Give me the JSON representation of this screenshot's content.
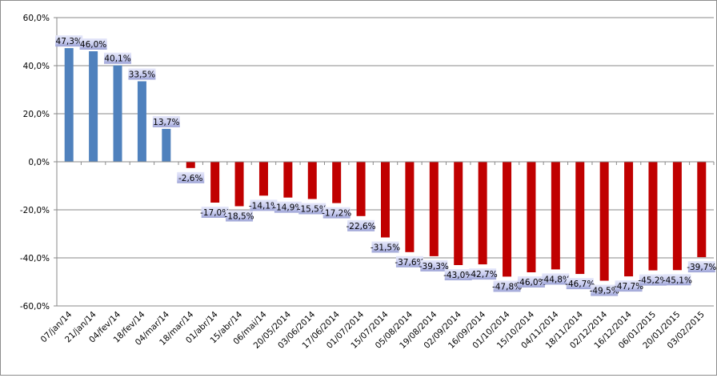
{
  "chart_data": {
    "type": "bar",
    "title": "",
    "xlabel": "",
    "ylabel": "",
    "ylim": [
      -60,
      60
    ],
    "yticks": [
      60,
      40,
      20,
      0,
      -20,
      -40,
      -60
    ],
    "ytick_labels": [
      "60,0%",
      "40,0%",
      "20,0%",
      "0,0%",
      "-20,0%",
      "-40,0%",
      "-60,0%"
    ],
    "grid": true,
    "legend": "none",
    "colors": {
      "positive": "#4f81bd",
      "negative": "#c00000",
      "label_box": "#c5c9ee"
    },
    "categories": [
      "07/jan/14",
      "21/jan/14",
      "04/fev/14",
      "18/fev/14",
      "04/mar/14",
      "18/mar/14",
      "01/abr/14",
      "15/abr/14",
      "06/mai/14",
      "20/05/2014",
      "03/06/2014",
      "17/06/2014",
      "01/07/2014",
      "15/07/2014",
      "05/08/2014",
      "19/08/2014",
      "02/09/2014",
      "16/09/2014",
      "01/10/2014",
      "15/10/2014",
      "04/11/2014",
      "18/11/2014",
      "02/12/2014",
      "16/12/2014",
      "06/01/2015",
      "20/01/2015",
      "03/02/2015"
    ],
    "values": [
      47.3,
      46.0,
      40.1,
      33.5,
      13.7,
      -2.6,
      -17.0,
      -18.5,
      -14.1,
      -14.9,
      -15.5,
      -17.2,
      -22.6,
      -31.5,
      -37.6,
      -39.3,
      -43.0,
      -42.7,
      -47.8,
      -46.0,
      -44.8,
      -46.7,
      -49.5,
      -47.7,
      -45.2,
      -45.1,
      -39.7
    ],
    "data_labels": [
      "47,3%",
      "46,0%",
      "40,1%",
      "33,5%",
      "13,7%",
      "-2,6%",
      "-17,0%",
      "-18,5%",
      "-14,1%",
      "-14,9%",
      "-15,5%",
      "-17,2%",
      "-22,6%",
      "-31,5%",
      "-37,6%",
      "-39,3%",
      "-43,0%",
      "-42,7%",
      "-47,8%",
      "-46,0%",
      "-44,8%",
      "-46,7%",
      "-49,5%",
      "-47,7%",
      "-45,2%",
      "-45,1%",
      "-39,7%"
    ]
  }
}
